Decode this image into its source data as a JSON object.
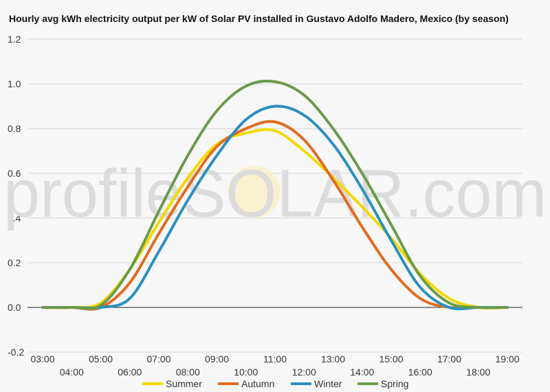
{
  "chart_data": {
    "type": "line",
    "title": "Hourly avg kWh electricity output per kW of Solar PV installed in Gustavo Adolfo Madero, Mexico (by season)",
    "watermark": "profileSOLAR.com",
    "x": [
      "03:00",
      "04:00",
      "05:00",
      "06:00",
      "07:00",
      "08:00",
      "09:00",
      "10:00",
      "11:00",
      "12:00",
      "13:00",
      "14:00",
      "15:00",
      "16:00",
      "17:00",
      "18:00",
      "19:00"
    ],
    "ylim": [
      -0.2,
      1.2
    ],
    "yticks": [
      -0.2,
      0.0,
      0.2,
      0.4,
      0.6,
      0.8,
      1.0,
      1.2
    ],
    "grid": true,
    "legend_position": "bottom",
    "series": [
      {
        "name": "Summer",
        "color": "#f5d800",
        "values": [
          0,
          0,
          0.02,
          0.17,
          0.38,
          0.58,
          0.73,
          0.78,
          0.79,
          0.7,
          0.58,
          0.45,
          0.31,
          0.15,
          0.04,
          0,
          0
        ]
      },
      {
        "name": "Autumn",
        "color": "#e06c1f",
        "values": [
          0,
          0,
          0,
          0.11,
          0.33,
          0.54,
          0.72,
          0.8,
          0.83,
          0.75,
          0.57,
          0.36,
          0.17,
          0.04,
          0,
          0,
          0
        ]
      },
      {
        "name": "Winter",
        "color": "#2b8fc0",
        "values": [
          0,
          0,
          0,
          0.04,
          0.25,
          0.48,
          0.68,
          0.84,
          0.9,
          0.86,
          0.73,
          0.53,
          0.3,
          0.09,
          0,
          0,
          0
        ]
      },
      {
        "name": "Spring",
        "color": "#6a9b4a",
        "values": [
          0,
          0,
          0.01,
          0.17,
          0.43,
          0.68,
          0.88,
          0.99,
          1.01,
          0.95,
          0.8,
          0.6,
          0.37,
          0.14,
          0.02,
          0,
          0
        ]
      }
    ]
  }
}
